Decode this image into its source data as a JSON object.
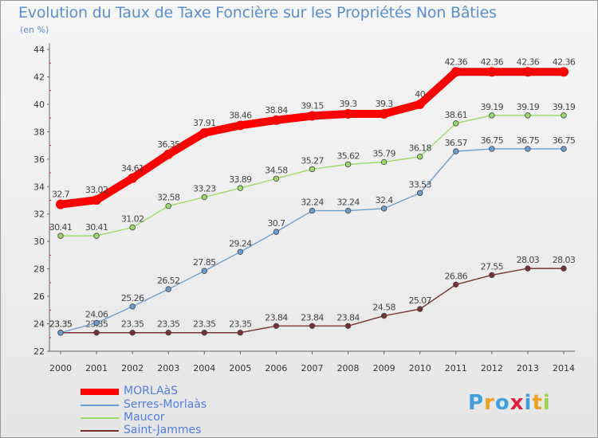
{
  "chart_data": {
    "type": "line",
    "title": "Evolution du Taux de Taxe Foncière sur les Propriétés Non Bâties",
    "unit_label": "(en %)",
    "x": [
      "2000",
      "2001",
      "2002",
      "2003",
      "2004",
      "2005",
      "2006",
      "2007",
      "2008",
      "2009",
      "2010",
      "2011",
      "2012",
      "2013",
      "2014"
    ],
    "ylim": [
      22,
      44
    ],
    "yticks": [
      22,
      24,
      26,
      28,
      30,
      32,
      34,
      36,
      38,
      40,
      42,
      44
    ],
    "grid": false,
    "legend_position": "bottom-left",
    "series": [
      {
        "name": "MORLAàS",
        "color": "#ff0000",
        "values": [
          32.7,
          33.02,
          34.61,
          36.35,
          37.91,
          38.46,
          38.84,
          39.15,
          39.3,
          39.3,
          40,
          42.36,
          42.36,
          42.36,
          42.36
        ],
        "labels": [
          "32.7",
          "33.02",
          "34.61",
          "36.35",
          "37.91",
          "38.46",
          "38.84",
          "39.15",
          "39.3",
          "39.3",
          "40",
          "42.36",
          "42.36",
          "42.36",
          "42.36"
        ]
      },
      {
        "name": "Serres-Morlaàs",
        "color": "#6a9fd4",
        "values": [
          23.35,
          24.06,
          25.26,
          26.52,
          27.85,
          29.24,
          30.7,
          32.24,
          32.24,
          32.4,
          33.53,
          36.57,
          36.75,
          36.75,
          36.75
        ],
        "labels": [
          "23.35",
          "24.06",
          "25.26",
          "26.52",
          "27.85",
          "29.24",
          "30.7",
          "32.24",
          "32.24",
          "32.4",
          "33.53",
          "36.57",
          "36.75",
          "36.75",
          "36.75"
        ]
      },
      {
        "name": "Maucor",
        "color": "#99dd66",
        "values": [
          30.41,
          30.41,
          31.02,
          32.58,
          33.23,
          33.89,
          34.58,
          35.27,
          35.62,
          35.79,
          36.18,
          38.61,
          39.19,
          39.19,
          39.19
        ],
        "labels": [
          "30.41",
          "30.41",
          "31.02",
          "32.58",
          "33.23",
          "33.89",
          "34.58",
          "35.27",
          "35.62",
          "35.79",
          "36.18",
          "38.61",
          "39.19",
          "39.19",
          "39.19"
        ]
      },
      {
        "name": "Saint-Jammes",
        "color": "#7a3030",
        "values": [
          23.35,
          23.35,
          23.35,
          23.35,
          23.35,
          23.35,
          23.84,
          23.84,
          23.84,
          24.58,
          25.07,
          26.86,
          27.55,
          28.03,
          28.03
        ],
        "labels": [
          "23.35",
          "23.35",
          "23.35",
          "23.35",
          "23.35",
          "23.35",
          "23.84",
          "23.84",
          "23.84",
          "24.58",
          "25.07",
          "26.86",
          "27.55",
          "28.03",
          "28.03"
        ]
      }
    ]
  },
  "legend": [
    {
      "label": "MORLAàS",
      "color": "#ff0000"
    },
    {
      "label": "Serres-Morlaàs",
      "color": "#6a9fd4"
    },
    {
      "label": "Maucor",
      "color": "#99dd66"
    },
    {
      "label": "Saint-Jammes",
      "color": "#7a3030"
    }
  ],
  "brand": {
    "text": "Proxiti",
    "letters": [
      "P",
      "r",
      "o",
      "x",
      "i",
      "t",
      "i"
    ],
    "colors": [
      "#3fa0e0",
      "#f0a020",
      "#3fa0e0",
      "#e0203a",
      "#3fa0e0",
      "#f0a020",
      "#9bd64a"
    ]
  }
}
